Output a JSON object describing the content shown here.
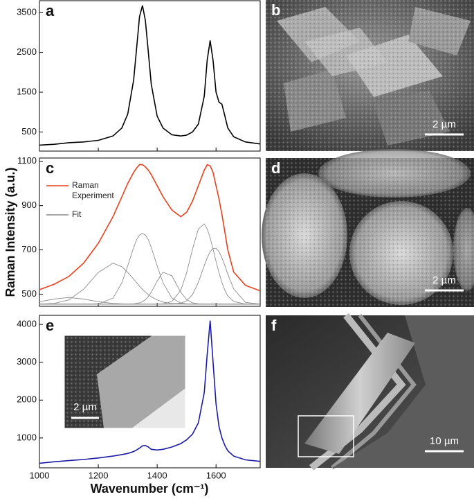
{
  "y_label": "Raman Intensity (a.u.)",
  "x_label": "Wavenumber (cm⁻¹)",
  "chart_data": [
    {
      "type": "line",
      "panel": "a",
      "x": [
        1000,
        1050,
        1100,
        1150,
        1200,
        1250,
        1280,
        1300,
        1320,
        1330,
        1340,
        1350,
        1360,
        1370,
        1380,
        1400,
        1420,
        1450,
        1480,
        1500,
        1520,
        1540,
        1560,
        1570,
        1580,
        1590,
        1600,
        1610,
        1620,
        1630,
        1640,
        1660,
        1700,
        1750
      ],
      "series": [
        {
          "color": "#000000",
          "values": [
            170,
            190,
            230,
            250,
            290,
            400,
            600,
            950,
            1800,
            2600,
            3400,
            3680,
            3300,
            2500,
            1700,
            900,
            600,
            430,
            400,
            420,
            500,
            700,
            1400,
            2300,
            2800,
            2300,
            1500,
            1250,
            1200,
            900,
            600,
            380,
            250,
            200
          ]
        }
      ],
      "xlim": [
        1000,
        1750
      ],
      "xticks": [
        1000,
        1200,
        1400,
        1600
      ],
      "ylim": [
        20,
        3800
      ],
      "yticks": [
        500,
        1500,
        2500,
        3500
      ]
    },
    {
      "type": "line",
      "panel": "c",
      "x": [
        1000,
        1050,
        1100,
        1150,
        1200,
        1250,
        1280,
        1300,
        1320,
        1330,
        1340,
        1350,
        1360,
        1370,
        1380,
        1400,
        1420,
        1450,
        1480,
        1500,
        1520,
        1540,
        1560,
        1570,
        1580,
        1590,
        1600,
        1610,
        1620,
        1630,
        1640,
        1660,
        1700,
        1750
      ],
      "series": [
        {
          "name": "Raman Experiment",
          "color": "#e8401c",
          "values": [
            520,
            545,
            580,
            640,
            730,
            850,
            940,
            1000,
            1050,
            1070,
            1085,
            1085,
            1075,
            1060,
            1040,
            990,
            940,
            880,
            850,
            870,
            920,
            990,
            1060,
            1085,
            1080,
            1050,
            990,
            930,
            860,
            780,
            700,
            600,
            540,
            515
          ]
        },
        {
          "name": "Fit",
          "color": "#8c8c8c",
          "values": [
            455,
            458,
            474,
            522,
            598,
            640,
            624,
            598,
            568,
            552,
            536,
            522,
            509,
            498,
            488,
            474,
            464,
            458,
            456,
            455,
            455,
            455,
            455,
            455,
            455,
            455,
            455,
            455,
            455,
            455,
            455,
            455,
            455,
            455
          ]
        },
        {
          "color": "#8c8c8c",
          "values": [
            455,
            455,
            455,
            455,
            456,
            482,
            551,
            628,
            711,
            746,
            767,
            775,
            767,
            746,
            711,
            628,
            551,
            482,
            460,
            456,
            455,
            455,
            455,
            455,
            455,
            455,
            455,
            455,
            455,
            455,
            455,
            455,
            455,
            455
          ]
        },
        {
          "color": "#8c8c8c",
          "values": [
            455,
            455,
            455,
            455,
            455,
            455,
            455,
            455,
            456,
            458,
            461,
            466,
            475,
            490,
            509,
            559,
            599,
            583,
            509,
            475,
            461,
            456,
            455,
            455,
            455,
            455,
            455,
            455,
            455,
            455,
            455,
            455,
            455,
            455
          ]
        },
        {
          "color": "#8c8c8c",
          "values": [
            455,
            455,
            455,
            455,
            455,
            455,
            455,
            455,
            455,
            455,
            455,
            455,
            455,
            455,
            455,
            455,
            456,
            467,
            517,
            597,
            703,
            795,
            817,
            795,
            755,
            703,
            648,
            597,
            553,
            517,
            492,
            467,
            455,
            455
          ]
        },
        {
          "color": "#8c8c8c",
          "values": [
            455,
            455,
            455,
            455,
            455,
            455,
            455,
            455,
            455,
            455,
            455,
            455,
            455,
            455,
            455,
            455,
            455,
            455,
            459,
            470,
            498,
            554,
            629,
            664,
            692,
            707,
            707,
            692,
            664,
            629,
            590,
            524,
            463,
            455
          ]
        },
        {
          "color": "#8c8c8c",
          "values": [
            466,
            478,
            485,
            478,
            466,
            458,
            456,
            455,
            455,
            455,
            455,
            455,
            455,
            455,
            455,
            455,
            455,
            455,
            455,
            455,
            455,
            455,
            455,
            455,
            455,
            455,
            455,
            455,
            455,
            455,
            455,
            455,
            455,
            455
          ]
        }
      ],
      "xlim": [
        1000,
        1750
      ],
      "xticks": [
        1000,
        1200,
        1400,
        1600
      ],
      "ylim": [
        445,
        1115
      ],
      "yticks": [
        500,
        700,
        900,
        1100
      ],
      "legend": "upper left"
    },
    {
      "type": "line",
      "panel": "e",
      "x": [
        1000,
        1050,
        1100,
        1150,
        1200,
        1250,
        1280,
        1300,
        1320,
        1330,
        1340,
        1350,
        1360,
        1370,
        1380,
        1400,
        1420,
        1450,
        1480,
        1500,
        1520,
        1540,
        1560,
        1570,
        1580,
        1590,
        1600,
        1610,
        1620,
        1630,
        1640,
        1660,
        1700,
        1750
      ],
      "series": [
        {
          "color": "#1a1aa6",
          "values": [
            330,
            370,
            400,
            430,
            470,
            520,
            560,
            590,
            640,
            680,
            730,
            790,
            800,
            760,
            700,
            680,
            700,
            760,
            850,
            950,
            1100,
            1400,
            2200,
            3200,
            4100,
            3000,
            1900,
            1300,
            1000,
            800,
            660,
            520,
            420,
            380
          ]
        }
      ],
      "xlim": [
        1000,
        1750
      ],
      "xticks": [
        1000,
        1200,
        1400,
        1600
      ],
      "ylim": [
        210,
        4240
      ],
      "yticks": [
        1000,
        2000,
        3000,
        4000
      ],
      "inset": {
        "scale_bar": "2 µm"
      }
    }
  ],
  "images": [
    {
      "panel": "b",
      "scale_bar": "2 µm"
    },
    {
      "panel": "d",
      "scale_bar": "2 µm"
    },
    {
      "panel": "f",
      "scale_bar": "10 µm"
    }
  ]
}
